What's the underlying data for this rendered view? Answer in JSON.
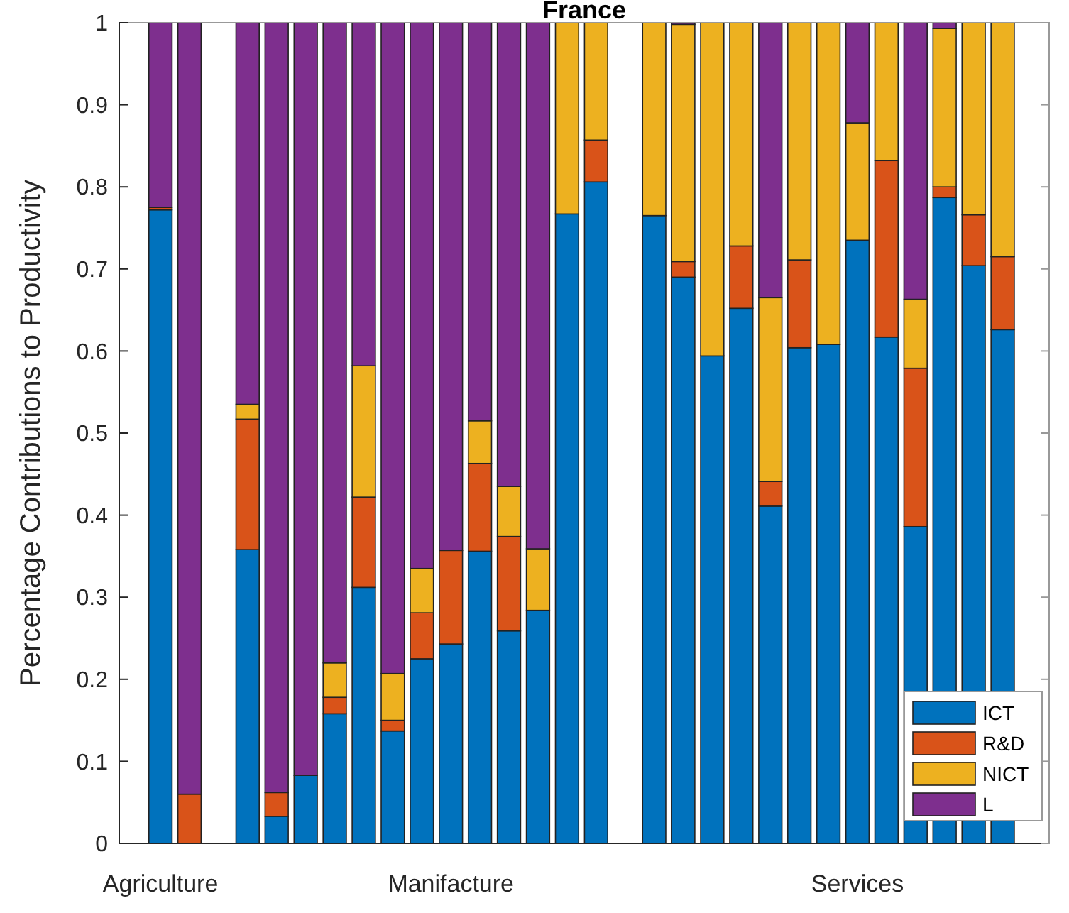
{
  "chart_data": {
    "type": "bar",
    "title": "France",
    "ylabel": "Percentage Contributions to Productivity",
    "stacked": true,
    "categories": [
      "Agriculture",
      null,
      null,
      null,
      null,
      null,
      null,
      null,
      null,
      null,
      "Manifacture",
      null,
      null,
      null,
      null,
      null,
      null,
      null,
      null,
      null,
      null,
      null,
      null,
      null,
      "Services",
      null,
      null,
      null,
      null,
      null
    ],
    "series": [
      {
        "name": "ICT",
        "color": "#0072bd",
        "values": [
          0.772,
          0,
          null,
          0.358,
          0.033,
          0.083,
          0.158,
          0.312,
          0.137,
          0.225,
          0.243,
          0.356,
          0.259,
          0.284,
          0.767,
          0.806,
          null,
          0.765,
          0.69,
          0.594,
          0.652,
          0.411,
          0.604,
          0.608,
          0.735,
          0.617,
          0.386,
          0.787,
          0.704,
          0.626
        ]
      },
      {
        "name": "R&D",
        "color": "#d95319",
        "values": [
          0.003,
          0.06,
          null,
          0.159,
          0.029,
          0,
          0.02,
          0.11,
          0.013,
          0.056,
          0.114,
          0.107,
          0.115,
          0,
          0,
          0.051,
          null,
          0,
          0.019,
          0,
          0.076,
          0.03,
          0.107,
          0,
          0,
          0.215,
          0.193,
          0.013,
          0.062,
          0.089
        ]
      },
      {
        "name": "NICT",
        "color": "#edb120",
        "values": [
          0,
          0,
          null,
          0.018,
          0,
          0,
          0.042,
          0.16,
          0.057,
          0.054,
          0,
          0.052,
          0.061,
          0.075,
          0.233,
          0.143,
          null,
          0.235,
          0.289,
          0.406,
          0.272,
          0.224,
          0.289,
          0.392,
          0.143,
          0.168,
          0.084,
          0.193,
          0.234,
          0.285
        ]
      },
      {
        "name": "L",
        "color": "#7e2f8e",
        "values": [
          0.225,
          0.94,
          null,
          0.465,
          0.938,
          0.917,
          0.78,
          0.418,
          0.793,
          0.665,
          0.643,
          0.485,
          0.565,
          0.641,
          0,
          0,
          null,
          0,
          0.002,
          0,
          0,
          0.335,
          0,
          0,
          0.122,
          0,
          0.337,
          0.007,
          0,
          0
        ]
      }
    ],
    "ylim": [
      0,
      1
    ],
    "yticks": [
      0,
      0.1,
      0.2,
      0.3,
      0.4,
      0.5,
      0.6,
      0.7,
      0.8,
      0.9,
      1
    ],
    "legend": "bottom right",
    "grid": false
  }
}
